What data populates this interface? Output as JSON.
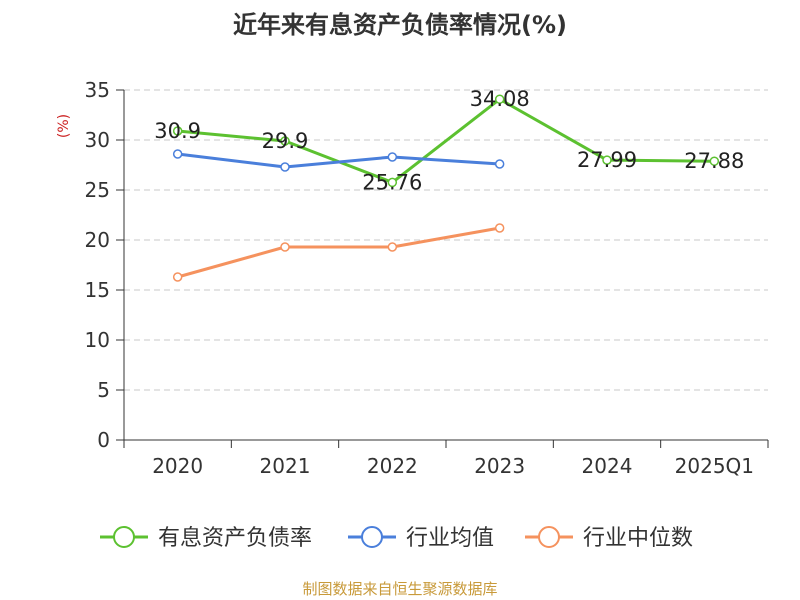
{
  "chart_data": {
    "type": "line",
    "title": "近年来有息资产负债率情况(%)",
    "ylabel": "(%)",
    "xlabel": "",
    "categories": [
      "2020",
      "2021",
      "2022",
      "2023",
      "2024",
      "2025Q1"
    ],
    "ylim": [
      0,
      35
    ],
    "yticks": [
      0,
      5,
      10,
      15,
      20,
      25,
      30,
      35
    ],
    "grid": true,
    "legend_position": "bottom",
    "series": [
      {
        "name": "有息资产负债率",
        "color": "#5cc130",
        "values": [
          30.9,
          29.9,
          25.76,
          34.08,
          27.99,
          27.88
        ],
        "labels": [
          "30.9",
          "29.9",
          "25.76",
          "34.08",
          "27.99",
          "27.88"
        ]
      },
      {
        "name": "行业均值",
        "color": "#4a7fdb",
        "values": [
          28.6,
          27.3,
          28.3,
          27.6,
          null,
          null
        ]
      },
      {
        "name": "行业中位数",
        "color": "#f5925e",
        "values": [
          16.3,
          19.3,
          19.3,
          21.2,
          null,
          null
        ]
      }
    ]
  },
  "footer": "制图数据来自恒生聚源数据库"
}
